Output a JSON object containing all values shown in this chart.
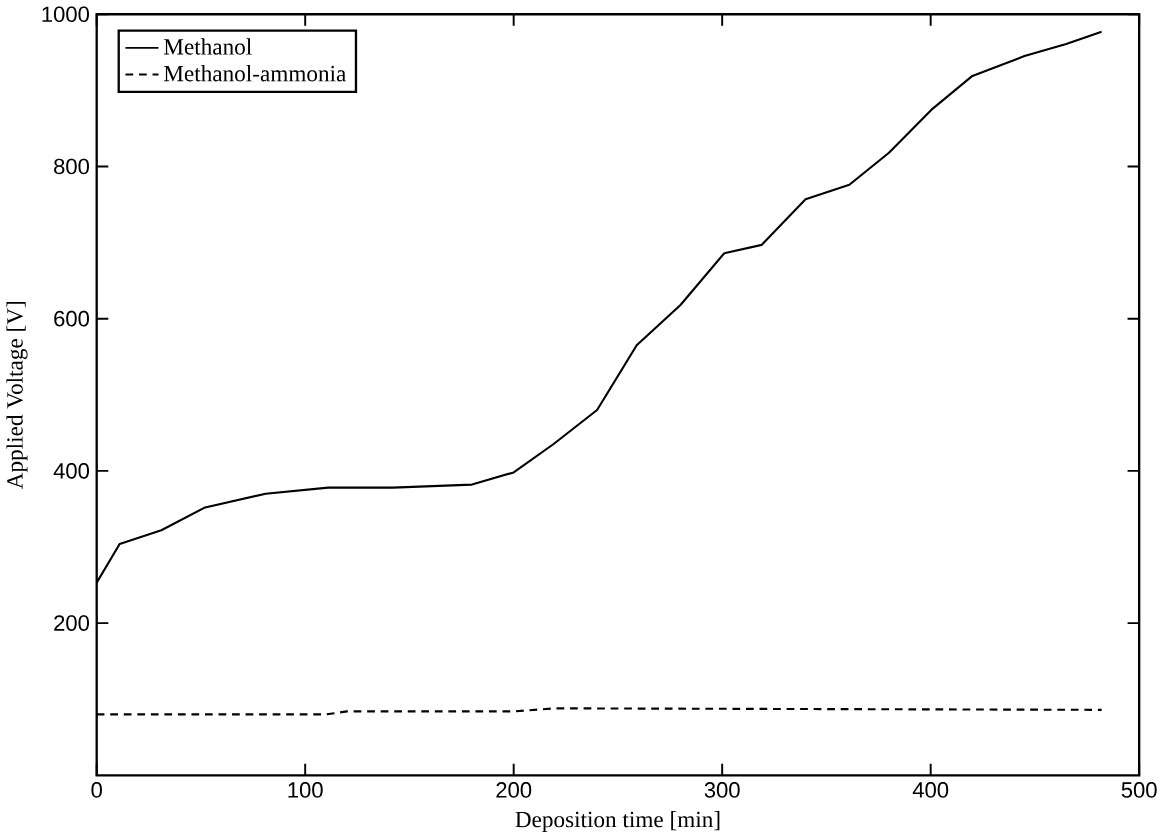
{
  "chart_data": {
    "type": "line",
    "xlabel": "Deposition time [min]",
    "ylabel": "Applied Voltage [V]",
    "xlim": [
      0,
      500
    ],
    "ylim": [
      0,
      1000
    ],
    "xticks": [
      0,
      100,
      200,
      300,
      400,
      500
    ],
    "yticks": [
      200,
      400,
      600,
      800,
      1000
    ],
    "legend": "top left",
    "grid": false,
    "marker": "none",
    "series": [
      {
        "name": "Methanol",
        "color": "#000000",
        "line_style": "solid",
        "x": [
          0,
          11,
          31,
          52,
          81,
          111,
          142,
          180,
          200,
          219,
          240,
          259,
          280,
          301,
          319,
          340,
          361,
          380,
          401,
          420,
          445,
          465,
          482
        ],
        "values": [
          253,
          304,
          322,
          352,
          370,
          378,
          378,
          382,
          398,
          435,
          480,
          565,
          618,
          686,
          697,
          757,
          776,
          818,
          876,
          919,
          945,
          961,
          977
        ]
      },
      {
        "name": "Methanol-ammonia",
        "color": "#000000",
        "line_style": "dashed",
        "x": [
          0,
          110,
          120,
          200,
          220,
          482
        ],
        "values": [
          80,
          80,
          84,
          84,
          88,
          86
        ]
      }
    ]
  }
}
